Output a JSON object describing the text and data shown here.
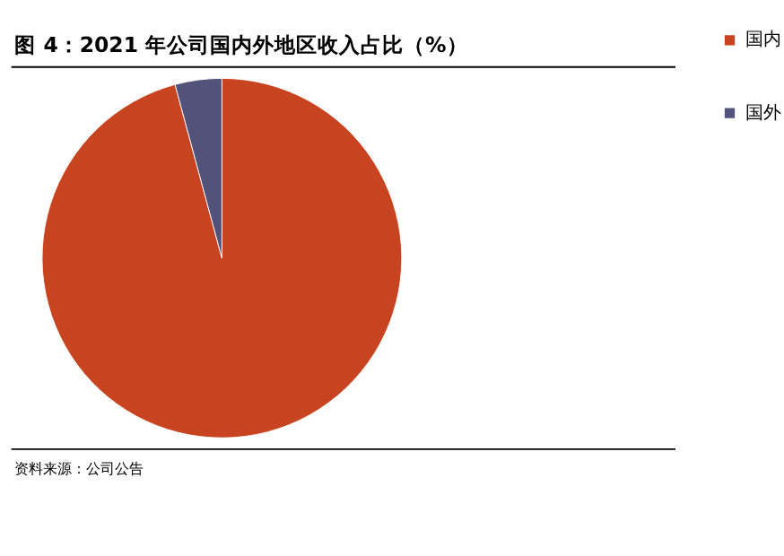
{
  "chart_data": {
    "type": "pie",
    "title": "图 4：2021 年公司国内外地区收入占比（%）",
    "categories": [
      "国内",
      "国外"
    ],
    "values": [
      95.8,
      4.2
    ],
    "colors": [
      "#c8431f",
      "#52527a"
    ],
    "legend": "right",
    "annotations": [
      "资料来源：公司公告"
    ]
  }
}
